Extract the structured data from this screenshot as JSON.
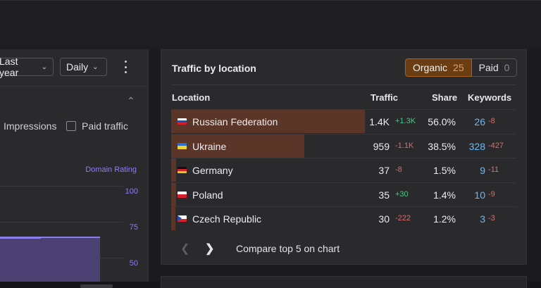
{
  "controls": {
    "period_label": "Last year",
    "interval_label": "Daily",
    "more_icon": "kebab-icon"
  },
  "chart": {
    "impressions_label": "Impressions",
    "paid_traffic_label": "Paid traffic",
    "domain_rating_label": "Domain Rating",
    "axis_ticks": [
      "100",
      "75",
      "50"
    ]
  },
  "traffic_panel": {
    "title": "Traffic by location",
    "organic_label": "Organic",
    "organic_count": "25",
    "paid_label": "Paid",
    "paid_count": "0",
    "columns": [
      "Location",
      "Traffic",
      "Share",
      "Keywords"
    ],
    "rows": [
      {
        "country": "Russian Federation",
        "flag": "ru",
        "traffic": "1.4K",
        "traffic_delta": "+1.3K",
        "share": "56.0%",
        "share_value": 56.0,
        "keywords": "26",
        "keywords_delta": "-8"
      },
      {
        "country": "Ukraine",
        "flag": "ua",
        "traffic": "959",
        "traffic_delta": "-1.1K",
        "share": "38.5%",
        "share_value": 38.5,
        "keywords": "328",
        "keywords_delta": "-427"
      },
      {
        "country": "Germany",
        "flag": "de",
        "traffic": "37",
        "traffic_delta": "-8",
        "share": "1.5%",
        "share_value": 1.5,
        "keywords": "9",
        "keywords_delta": "-11"
      },
      {
        "country": "Poland",
        "flag": "pl",
        "traffic": "35",
        "traffic_delta": "+30",
        "share": "1.4%",
        "share_value": 1.4,
        "keywords": "10",
        "keywords_delta": "-9"
      },
      {
        "country": "Czech Republic",
        "flag": "cz",
        "traffic": "30",
        "traffic_delta": "-222",
        "share": "1.2%",
        "share_value": 1.2,
        "keywords": "3",
        "keywords_delta": "-3"
      }
    ],
    "compare_label": "Compare top 5 on chart"
  },
  "colors": {
    "organic_accent": "#6b3d12",
    "positive": "#4cc38a",
    "negative": "#e06a6a",
    "keywords": "#6cb8f2",
    "domain_rating": "#8b7ff0"
  }
}
